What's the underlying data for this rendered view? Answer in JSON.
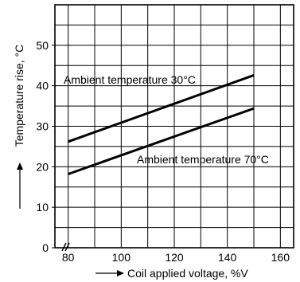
{
  "chart_data": {
    "type": "line",
    "xlabel": "Coil applied voltage, %V",
    "ylabel": "Temperature rise, °C",
    "xlim": [
      75,
      165
    ],
    "ylim": [
      0,
      60
    ],
    "x_ticks": [
      "80",
      "100",
      "120",
      "140",
      "160"
    ],
    "y_ticks": [
      "0",
      "10",
      "20",
      "30",
      "40",
      "50"
    ],
    "grid": true,
    "x_axis_break": true,
    "series": [
      {
        "name": "Ambient temperature 30°C",
        "x": [
          80,
          150
        ],
        "y": [
          26.2,
          42.6
        ]
      },
      {
        "name": "Ambient temperature 70°C",
        "x": [
          80,
          150
        ],
        "y": [
          18.2,
          34.4
        ]
      }
    ],
    "annotations": [
      "Ambient temperature 30°C",
      "Ambient temperature 70°C"
    ]
  }
}
